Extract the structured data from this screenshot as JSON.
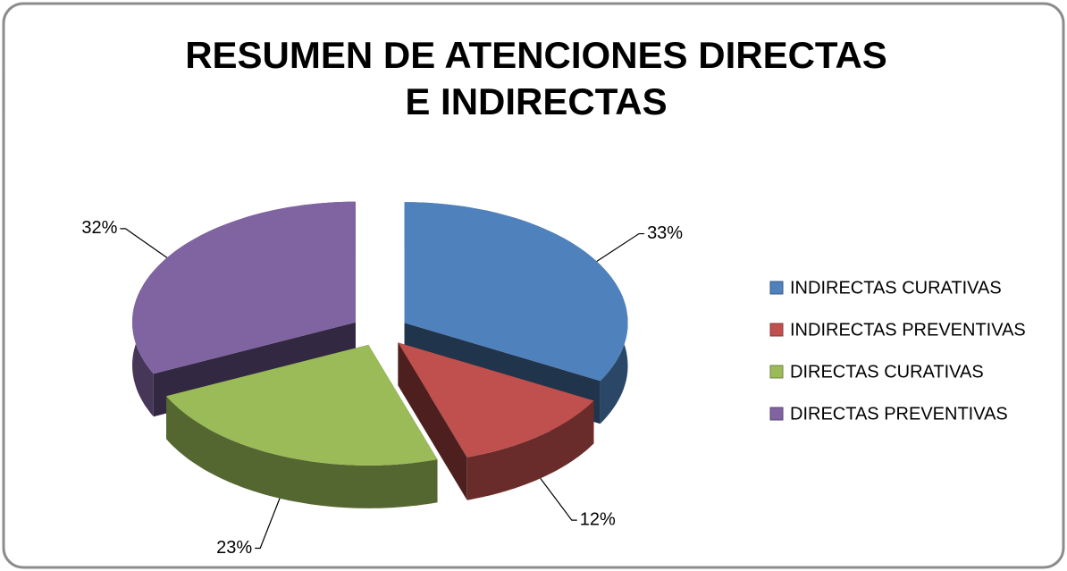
{
  "chart_data": {
    "type": "pie",
    "title": "RESUMEN DE ATENCIONES DIRECTAS E INDIRECTAS",
    "categories": [
      "INDIRECTAS CURATIVAS",
      "INDIRECTAS PREVENTIVAS",
      "DIRECTAS CURATIVAS",
      "DIRECTAS PREVENTIVAS"
    ],
    "values": [
      33,
      12,
      23,
      32
    ],
    "value_labels": [
      "33%",
      "12%",
      "23%",
      "32%"
    ],
    "colors": [
      "#4f81bd",
      "#c0504d",
      "#9bbb59",
      "#8064a2"
    ],
    "legend": "right"
  }
}
